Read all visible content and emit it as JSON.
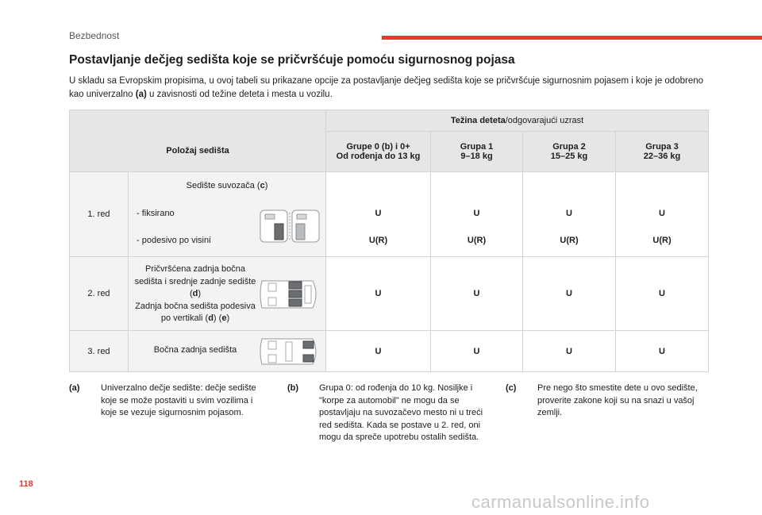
{
  "header": {
    "section": "Bezbednost"
  },
  "title": "Postavljanje dečjeg sedišta koje se pričvršćuje pomoću sigurnosnog pojasa",
  "intro": {
    "p1": "U skladu sa Evropskim propisima, u ovoj tabeli su prikazane opcije za postavljanje dečjeg sedišta koje se pričvršćuje sigurnosnim pojasem i koje je odobreno kao univerzalno ",
    "ref": "(a)",
    "p2": " u zavisnosti od težine deteta i mesta u vozilu."
  },
  "table": {
    "seat_header": "Položaj sedišta",
    "weight_header_bold": "Težina deteta",
    "weight_header_rest": "/odgovarajući uzrast",
    "groups": [
      {
        "name": "Grupe 0 (b) i 0+",
        "range": "Od rođenja do 13 kg"
      },
      {
        "name": "Grupa 1",
        "range": "9–18 kg"
      },
      {
        "name": "Grupa 2",
        "range": "15–25 kg"
      },
      {
        "name": "Grupa 3",
        "range": "22–36 kg"
      }
    ],
    "rows": {
      "r1": {
        "label": "1. red",
        "title_pre": "Sedište suvozača (",
        "title_ref": "c",
        "title_post": ")",
        "opt1_label": "-   fiksirano",
        "opt2_label": "-   podesivo po visini",
        "opt1_values": [
          "U",
          "U",
          "U",
          "U"
        ],
        "opt2_values": [
          "U(R)",
          "U(R)",
          "U(R)",
          "U(R)"
        ]
      },
      "r2": {
        "label": "2. red",
        "d1": "Pričvršćena zadnja bočna sedišta i srednje zadnje sedište (",
        "d1_ref": "d",
        "d1_post": ")",
        "d2": "Zadnja bočna sedišta podesiva po vertikali (",
        "d2_ref1": "d",
        "d2_mid": ") (",
        "d2_ref2": "e",
        "d2_post": ")",
        "values": [
          "U",
          "U",
          "U",
          "U"
        ]
      },
      "r3": {
        "label": "3. red",
        "desc": "Bočna zadnja sedišta",
        "values": [
          "U",
          "U",
          "U",
          "U"
        ]
      }
    }
  },
  "footnotes": [
    {
      "key": "(a)",
      "text": "Univerzalno dečje sedište: dečje sedište koje se može postaviti u svim vozilima i koje se vezuje sigurnosnim pojasom."
    },
    {
      "key": "(b)",
      "text": "Grupa 0: od rođenja do 10 kg. Nosiljke i \"korpe za automobil\" ne mogu da se postavljaju na suvozačevo mesto ni u treći red sedišta. Kada se postave u 2. red, oni mogu da spreče upotrebu ostalih sedišta."
    },
    {
      "key": "(c)",
      "text": "Pre nego što smestite dete u ovo sedište, proverite zakone koji su na snazi u vašoj zemlji."
    }
  ],
  "page_number": "118",
  "watermark": "carmanualsonline.info"
}
